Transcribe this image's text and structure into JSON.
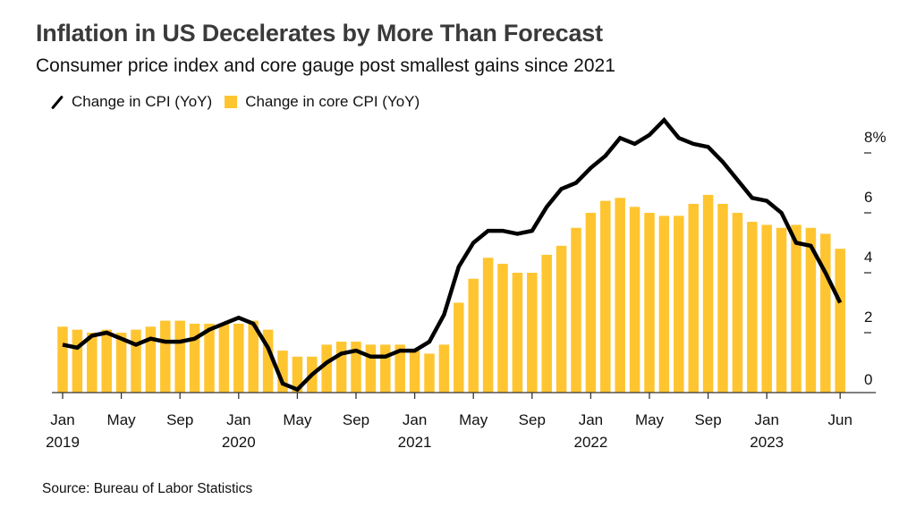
{
  "header": {
    "title": "Inflation in US Decelerates by More Than Forecast",
    "subtitle": "Consumer price index and core gauge post smallest gains since 2021"
  },
  "legend": [
    {
      "label": "Change in CPI (YoY)",
      "kind": "line",
      "color": "#000000"
    },
    {
      "label": "Change in core CPI (YoY)",
      "kind": "bar",
      "color": "#FFC530"
    }
  ],
  "footer": {
    "source": "Source: Bureau of Labor Statistics"
  },
  "chart_data": {
    "type": "bar+line",
    "title": "Inflation in US Decelerates by More Than Forecast",
    "subtitle": "Consumer price index and core gauge post smallest gains since 2021",
    "xlabel": "",
    "ylabel": "",
    "ylim": [
      0,
      9.5
    ],
    "yticks": [
      0,
      2,
      4,
      6,
      8
    ],
    "ytick_labels": [
      "0",
      "2",
      "4",
      "6",
      "8%"
    ],
    "y_axis_position": "right",
    "grid": false,
    "legend_position": "top-left",
    "x": [
      "2019-01",
      "2019-02",
      "2019-03",
      "2019-04",
      "2019-05",
      "2019-06",
      "2019-07",
      "2019-08",
      "2019-09",
      "2019-10",
      "2019-11",
      "2019-12",
      "2020-01",
      "2020-02",
      "2020-03",
      "2020-04",
      "2020-05",
      "2020-06",
      "2020-07",
      "2020-08",
      "2020-09",
      "2020-10",
      "2020-11",
      "2020-12",
      "2021-01",
      "2021-02",
      "2021-03",
      "2021-04",
      "2021-05",
      "2021-06",
      "2021-07",
      "2021-08",
      "2021-09",
      "2021-10",
      "2021-11",
      "2021-12",
      "2022-01",
      "2022-02",
      "2022-03",
      "2022-04",
      "2022-05",
      "2022-06",
      "2022-07",
      "2022-08",
      "2022-09",
      "2022-10",
      "2022-11",
      "2022-12",
      "2023-01",
      "2023-02",
      "2023-03",
      "2023-04",
      "2023-05",
      "2023-06"
    ],
    "xticks": [
      {
        "index": 0,
        "label": "Jan",
        "sublabel": "2019"
      },
      {
        "index": 4,
        "label": "May",
        "sublabel": ""
      },
      {
        "index": 8,
        "label": "Sep",
        "sublabel": ""
      },
      {
        "index": 12,
        "label": "Jan",
        "sublabel": "2020"
      },
      {
        "index": 16,
        "label": "May",
        "sublabel": ""
      },
      {
        "index": 20,
        "label": "Sep",
        "sublabel": ""
      },
      {
        "index": 24,
        "label": "Jan",
        "sublabel": "2021"
      },
      {
        "index": 28,
        "label": "May",
        "sublabel": ""
      },
      {
        "index": 32,
        "label": "Sep",
        "sublabel": ""
      },
      {
        "index": 36,
        "label": "Jan",
        "sublabel": "2022"
      },
      {
        "index": 40,
        "label": "May",
        "sublabel": ""
      },
      {
        "index": 44,
        "label": "Sep",
        "sublabel": ""
      },
      {
        "index": 48,
        "label": "Jan",
        "sublabel": "2023"
      },
      {
        "index": 53,
        "label": "Jun",
        "sublabel": ""
      }
    ],
    "series": [
      {
        "name": "Change in core CPI (YoY)",
        "type": "bar",
        "color": "#FFC530",
        "values": [
          2.2,
          2.1,
          2.0,
          2.1,
          2.0,
          2.1,
          2.2,
          2.4,
          2.4,
          2.3,
          2.3,
          2.3,
          2.3,
          2.4,
          2.1,
          1.4,
          1.2,
          1.2,
          1.6,
          1.7,
          1.7,
          1.6,
          1.6,
          1.6,
          1.4,
          1.3,
          1.6,
          3.0,
          3.8,
          4.5,
          4.3,
          4.0,
          4.0,
          4.6,
          4.9,
          5.5,
          6.0,
          6.4,
          6.5,
          6.2,
          6.0,
          5.9,
          5.9,
          6.3,
          6.6,
          6.3,
          6.0,
          5.7,
          5.6,
          5.5,
          5.6,
          5.5,
          5.3,
          4.8
        ]
      },
      {
        "name": "Change in CPI (YoY)",
        "type": "line",
        "color": "#000000",
        "values": [
          1.6,
          1.5,
          1.9,
          2.0,
          1.8,
          1.6,
          1.8,
          1.7,
          1.7,
          1.8,
          2.1,
          2.3,
          2.5,
          2.3,
          1.5,
          0.3,
          0.1,
          0.6,
          1.0,
          1.3,
          1.4,
          1.2,
          1.2,
          1.4,
          1.4,
          1.7,
          2.6,
          4.2,
          5.0,
          5.4,
          5.4,
          5.3,
          5.4,
          6.2,
          6.8,
          7.0,
          7.5,
          7.9,
          8.5,
          8.3,
          8.6,
          9.1,
          8.5,
          8.3,
          8.2,
          7.7,
          7.1,
          6.5,
          6.4,
          6.0,
          5.0,
          4.9,
          4.0,
          3.0
        ]
      }
    ]
  }
}
